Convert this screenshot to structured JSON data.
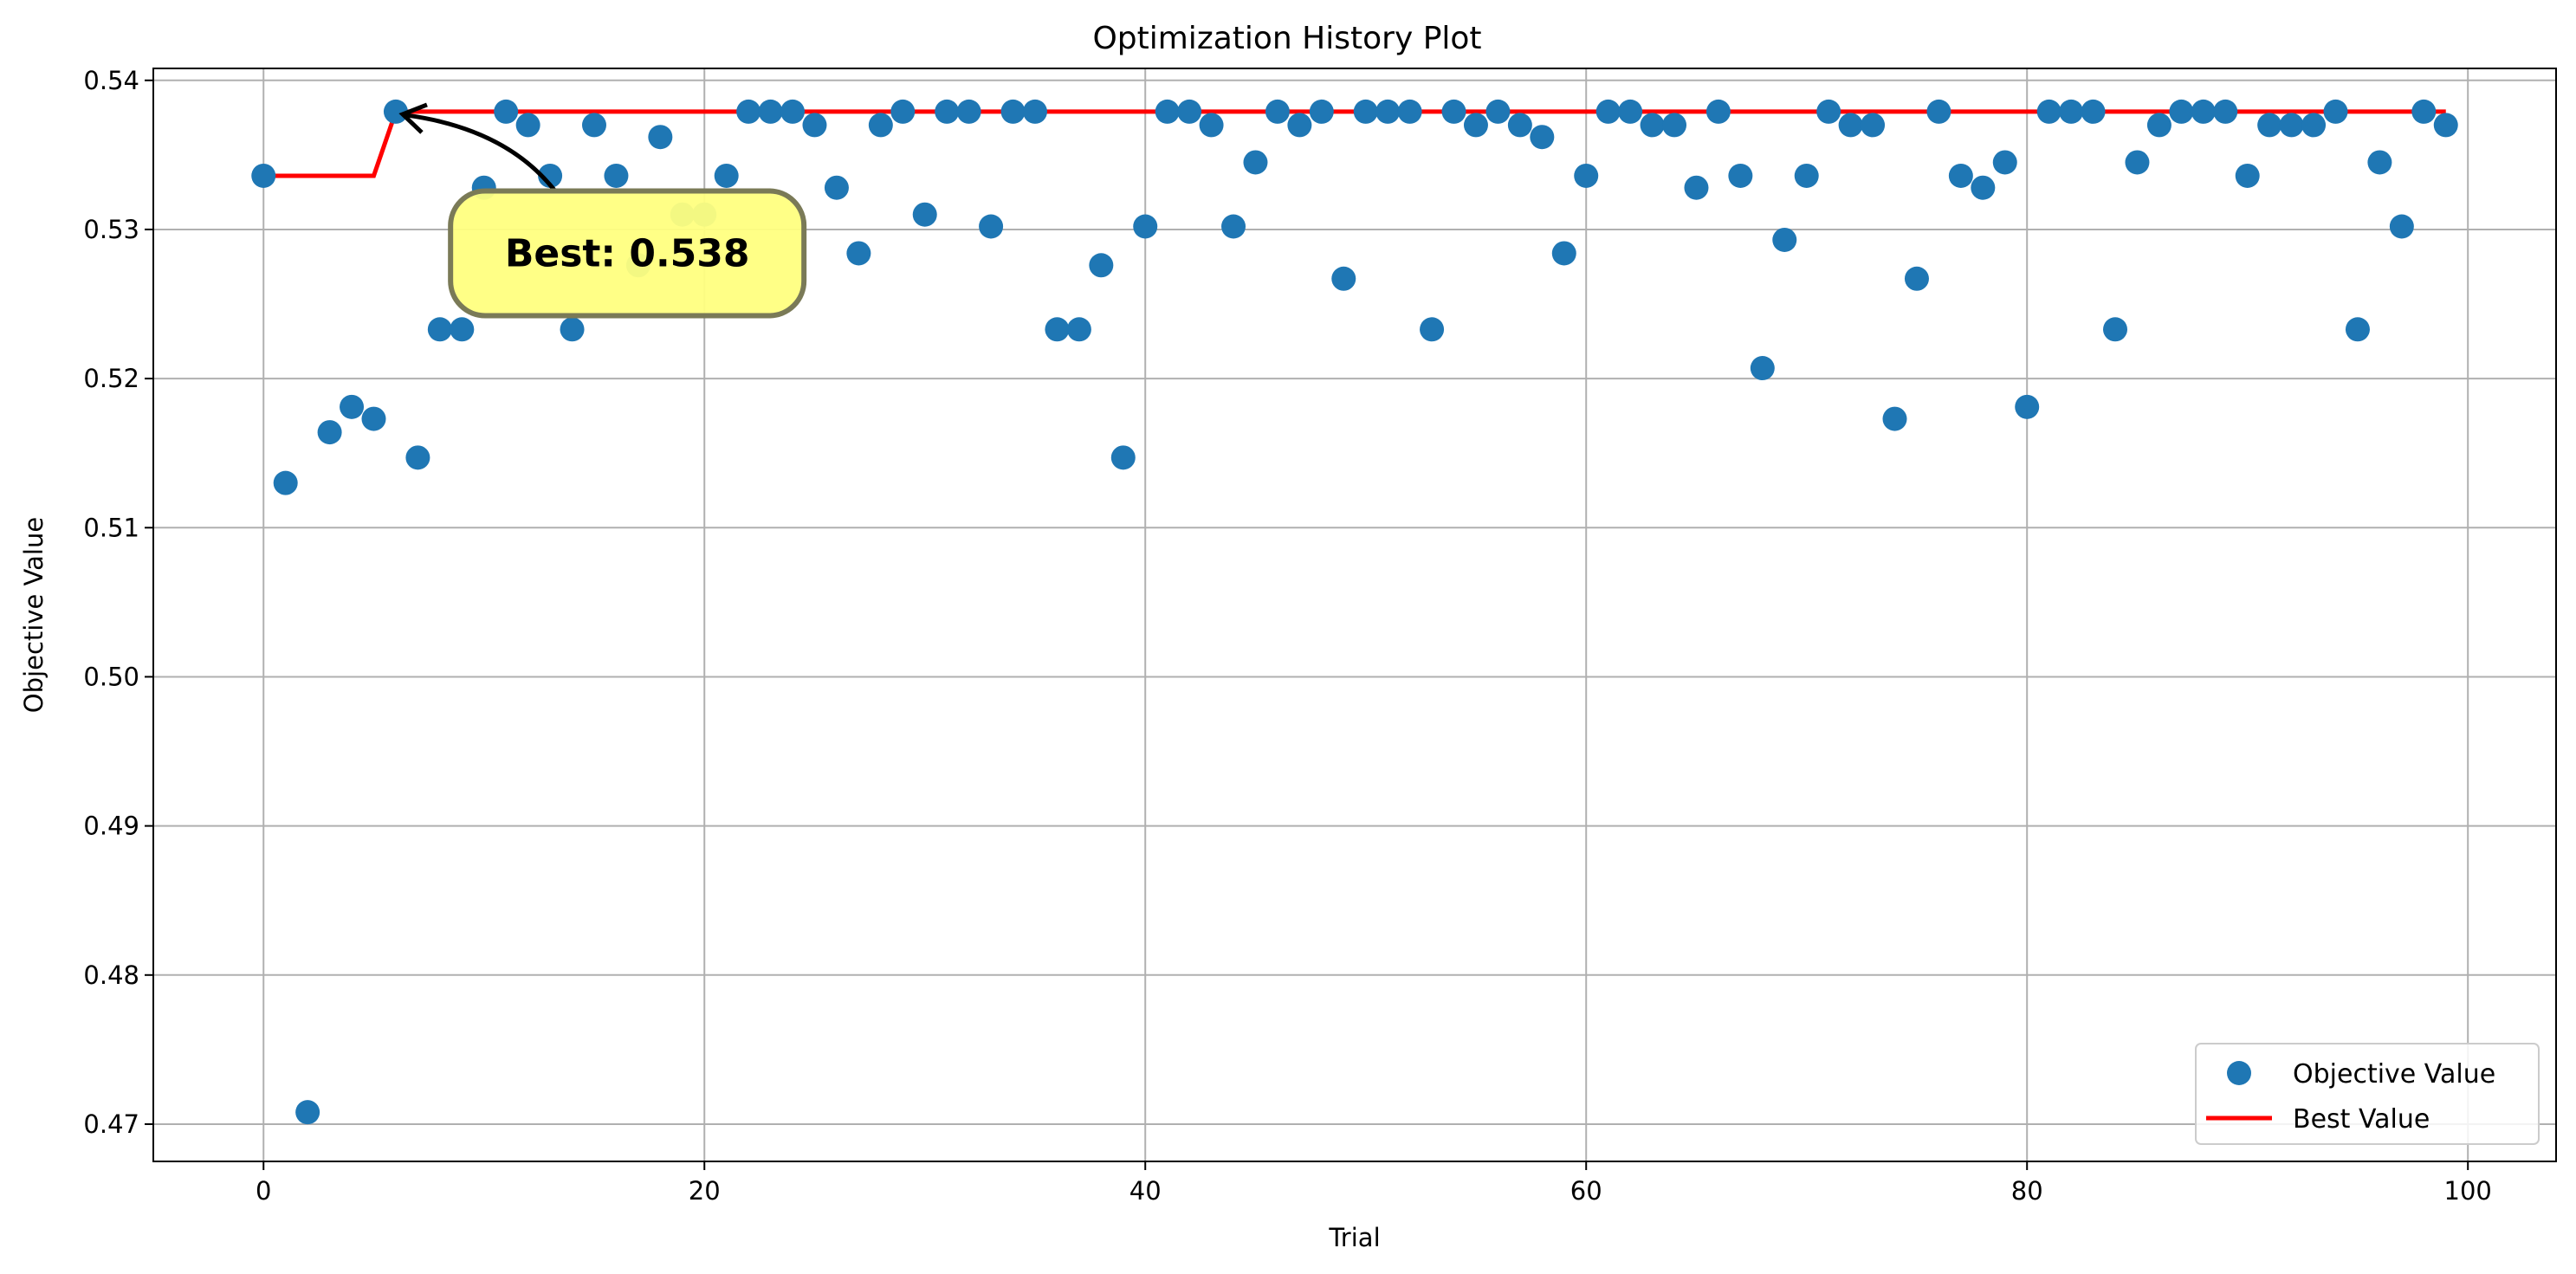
{
  "chart_data": {
    "type": "scatter",
    "title": "Optimization History Plot",
    "xlabel": "Trial",
    "ylabel": "Objective Value",
    "xlim": [
      -5,
      104
    ],
    "ylim": [
      0.4675,
      0.5408
    ],
    "xticks": [
      0,
      20,
      40,
      60,
      80,
      100
    ],
    "yticks": [
      0.47,
      0.48,
      0.49,
      0.5,
      0.51,
      0.52,
      0.53,
      0.54
    ],
    "grid": true,
    "legend": {
      "position": "bottom-right",
      "entries": [
        "Objective Value",
        "Best Value"
      ]
    },
    "colors": {
      "objective": "#1f77b4",
      "best": "#ff0000",
      "annotation_fill": "#ffff80",
      "annotation_edge": "#7a7a57"
    },
    "series": [
      {
        "name": "Objective Value",
        "mark": "point",
        "x": [
          0,
          1,
          2,
          3,
          4,
          5,
          6,
          7,
          8,
          9,
          10,
          11,
          12,
          13,
          14,
          15,
          16,
          17,
          18,
          19,
          20,
          21,
          22,
          23,
          24,
          25,
          26,
          27,
          28,
          29,
          30,
          31,
          32,
          33,
          34,
          35,
          36,
          37,
          38,
          39,
          40,
          41,
          42,
          43,
          44,
          45,
          46,
          47,
          48,
          49,
          50,
          51,
          52,
          53,
          54,
          55,
          56,
          57,
          58,
          59,
          60,
          61,
          62,
          63,
          64,
          65,
          66,
          67,
          68,
          69,
          70,
          71,
          72,
          73,
          74,
          75,
          76,
          77,
          78,
          79,
          80,
          81,
          82,
          83,
          84,
          85,
          86,
          87,
          88,
          89,
          90,
          91,
          92,
          93,
          94,
          95,
          96,
          97,
          98,
          99
        ],
        "y": [
          0.5336,
          0.513,
          0.4708,
          0.5164,
          0.5181,
          0.5173,
          0.5379,
          0.5147,
          0.5233,
          0.5233,
          0.5328,
          0.5379,
          0.537,
          0.5336,
          0.5233,
          0.537,
          0.5336,
          0.5276,
          0.5362,
          0.531,
          0.531,
          0.5336,
          0.5379,
          0.5379,
          0.5379,
          0.537,
          0.5328,
          0.5284,
          0.537,
          0.5379,
          0.531,
          0.5379,
          0.5379,
          0.5302,
          0.5379,
          0.5379,
          0.5233,
          0.5233,
          0.5276,
          0.5147,
          0.5302,
          0.5379,
          0.5379,
          0.537,
          0.5302,
          0.5345,
          0.5379,
          0.537,
          0.5379,
          0.5267,
          0.5379,
          0.5379,
          0.5379,
          0.5233,
          0.5379,
          0.537,
          0.5379,
          0.537,
          0.5362,
          0.5284,
          0.5336,
          0.5379,
          0.5379,
          0.537,
          0.537,
          0.5328,
          0.5379,
          0.5336,
          0.5207,
          0.5293,
          0.5336,
          0.5379,
          0.537,
          0.537,
          0.5173,
          0.5267,
          0.5379,
          0.5336,
          0.5328,
          0.5345,
          0.5181,
          0.5379,
          0.5379,
          0.5379,
          0.5233,
          0.5345,
          0.537,
          0.5379,
          0.5379,
          0.5379,
          0.5336,
          0.537,
          0.537,
          0.537,
          0.5379,
          0.5233,
          0.5345,
          0.5302,
          0.5379,
          0.537
        ]
      },
      {
        "name": "Best Value",
        "mark": "line",
        "x": [
          0,
          5,
          6,
          99
        ],
        "y": [
          0.5336,
          0.5336,
          0.5379,
          0.5379
        ]
      }
    ],
    "annotations": [
      {
        "text": "Best: 0.538",
        "point_x": 6,
        "point_y": 0.5379,
        "text_x": 16.5,
        "text_y": 0.5284
      }
    ]
  }
}
